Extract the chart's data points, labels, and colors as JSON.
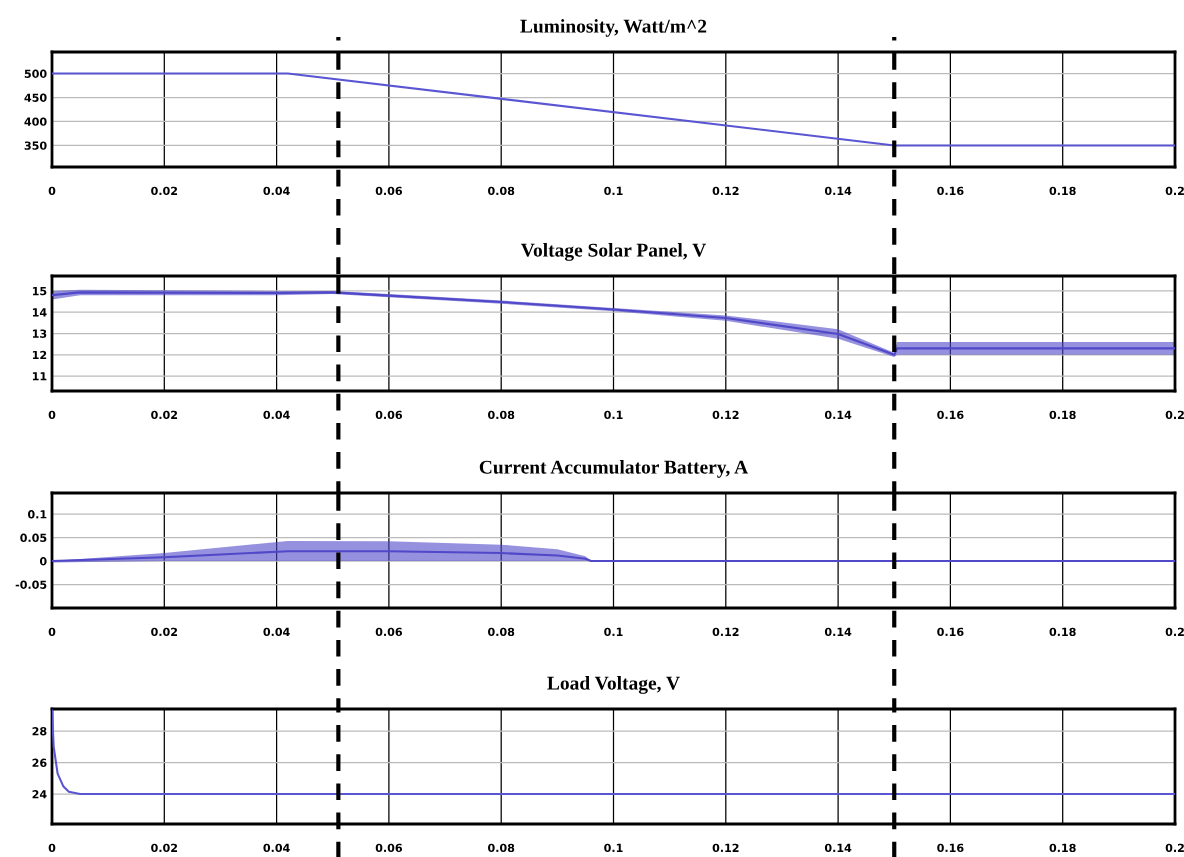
{
  "chart_data": [
    {
      "type": "line",
      "title": "Luminosity, Watt/m^2",
      "xlim": [
        0,
        0.2
      ],
      "xticks": [
        0,
        0.02,
        0.04,
        0.06,
        0.08,
        0.1,
        0.12,
        0.14,
        0.16,
        0.18,
        0.2
      ],
      "ylim": [
        305,
        545
      ],
      "yticks": [
        350,
        400,
        450,
        500
      ],
      "grid": true,
      "series": [
        {
          "color": "#5a55d2",
          "x": [
            0,
            0.042,
            0.15,
            0.2
          ],
          "values": [
            500,
            500,
            350,
            350
          ]
        }
      ],
      "ref_lines": [
        {
          "axis": "x",
          "value": 0.051,
          "color": "#000000",
          "line_style": "dashed"
        },
        {
          "axis": "x",
          "value": 0.15,
          "color": "#000000",
          "line_style": "dashed"
        }
      ]
    },
    {
      "type": "line",
      "title": "Voltage Solar Panel, V",
      "xlim": [
        0,
        0.2
      ],
      "xticks": [
        0,
        0.02,
        0.04,
        0.06,
        0.08,
        0.1,
        0.12,
        0.14,
        0.16,
        0.18,
        0.2
      ],
      "ylim": [
        10.3,
        15.7
      ],
      "yticks": [
        11,
        12,
        13,
        14,
        15
      ],
      "grid": true,
      "series": [
        {
          "color": "#5048c8",
          "x": [
            0,
            0.005,
            0.04,
            0.05,
            0.06,
            0.08,
            0.1,
            0.12,
            0.14,
            0.15,
            0.1505,
            0.2
          ],
          "values": [
            14.8,
            14.93,
            14.9,
            14.93,
            14.78,
            14.48,
            14.13,
            13.73,
            12.98,
            12.0,
            12.3,
            12.3
          ],
          "lower": [
            14.6,
            14.8,
            14.8,
            14.85,
            14.7,
            14.4,
            14.05,
            13.6,
            12.75,
            11.9,
            12.0,
            12.0
          ],
          "upper": [
            15.0,
            15.05,
            15.0,
            15.0,
            14.85,
            14.55,
            14.2,
            13.85,
            13.2,
            12.1,
            12.6,
            12.6
          ]
        }
      ],
      "ref_lines": [
        {
          "axis": "x",
          "value": 0.051,
          "color": "#000000",
          "line_style": "dashed"
        },
        {
          "axis": "x",
          "value": 0.15,
          "color": "#000000",
          "line_style": "dashed"
        }
      ]
    },
    {
      "type": "line",
      "title": "Current Accumulator Battery, A",
      "xlim": [
        0,
        0.2
      ],
      "xticks": [
        0,
        0.02,
        0.04,
        0.06,
        0.08,
        0.1,
        0.12,
        0.14,
        0.16,
        0.18,
        0.2
      ],
      "ylim": [
        -0.1,
        0.145
      ],
      "yticks": [
        -0.05,
        0,
        0.05,
        0.1
      ],
      "grid": true,
      "series": [
        {
          "color": "#5048c8",
          "x": [
            0,
            0.02,
            0.042,
            0.06,
            0.08,
            0.09,
            0.095,
            0.096,
            0.2
          ],
          "values": [
            0,
            0.008,
            0.021,
            0.021,
            0.017,
            0.012,
            0.005,
            0,
            0
          ],
          "lower": [
            -0.003,
            0,
            0,
            0,
            0,
            0,
            0,
            0,
            0
          ],
          "upper": [
            0,
            0.017,
            0.043,
            0.042,
            0.035,
            0.025,
            0.01,
            0,
            0
          ]
        }
      ],
      "ref_lines": [
        {
          "axis": "x",
          "value": 0.051,
          "color": "#000000",
          "line_style": "dashed"
        },
        {
          "axis": "x",
          "value": 0.15,
          "color": "#000000",
          "line_style": "dashed"
        }
      ]
    },
    {
      "type": "line",
      "title": "Load Voltage, V",
      "xlim": [
        0,
        0.2
      ],
      "xticks": [
        0,
        0.02,
        0.04,
        0.06,
        0.08,
        0.1,
        0.12,
        0.14,
        0.16,
        0.18,
        0.2
      ],
      "ylim": [
        22.1,
        29.4
      ],
      "yticks": [
        24,
        26,
        28
      ],
      "grid": true,
      "series": [
        {
          "color": "#5a55d2",
          "x": [
            0,
            0.0003,
            0.001,
            0.002,
            0.003,
            0.005,
            0.2
          ],
          "values": [
            29.3,
            27,
            25.3,
            24.5,
            24.15,
            24,
            24
          ]
        }
      ],
      "ref_lines": [
        {
          "axis": "x",
          "value": 0.051,
          "color": "#000000",
          "line_style": "dashed"
        },
        {
          "axis": "x",
          "value": 0.15,
          "color": "#000000",
          "line_style": "dashed"
        }
      ]
    }
  ]
}
